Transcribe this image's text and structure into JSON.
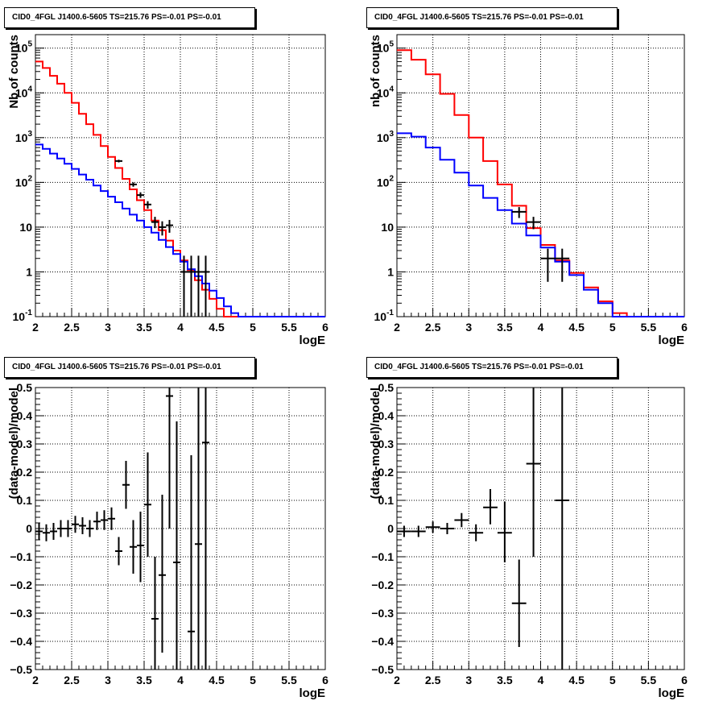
{
  "panels": [
    {
      "title": "CID0_4FGL J1400.6-5605 TS=215.76 PS=-0.01 PS=-0.01",
      "xlabel": "logE",
      "ylabel": "Nb of counts"
    },
    {
      "title": "CID0_4FGL J1400.6-5605 TS=215.76 PS=-0.01 PS=-0.01",
      "xlabel": "logE",
      "ylabel": "nb of counts"
    },
    {
      "title": "CID0_4FGL J1400.6-5605 TS=215.76 PS=-0.01 PS=-0.01",
      "xlabel": "logE",
      "ylabel": "(data-model)/model"
    },
    {
      "title": "CID0_4FGL J1400.6-5605 TS=215.76 PS=-0.01 PS=-0.01",
      "xlabel": "logE",
      "ylabel": "(data-model)/model"
    }
  ],
  "chart_data": [
    {
      "type": "histogram",
      "title": "CID0_4FGL J1400.6-5605 TS=215.76 PS=-0.01 PS=-0.01",
      "xlabel": "logE",
      "ylabel": "Nb of counts",
      "xlim": [
        2,
        6
      ],
      "ylim": [
        0.1,
        200000
      ],
      "yscale": "log",
      "grid": true,
      "xticks": [
        "2",
        "2.5",
        "3",
        "3.5",
        "4",
        "4.5",
        "5",
        "5.5",
        "6"
      ],
      "yticks": [
        {
          "value": 0.1,
          "label": "10",
          "exp": "-1"
        },
        {
          "value": 1,
          "label": "1",
          "exp": ""
        },
        {
          "value": 10,
          "label": "10",
          "exp": ""
        },
        {
          "value": 100,
          "label": "10",
          "exp": "2"
        },
        {
          "value": 1000,
          "label": "10",
          "exp": "3"
        },
        {
          "value": 10000,
          "label": "10",
          "exp": "4"
        },
        {
          "value": 100000,
          "label": "10",
          "exp": "5"
        }
      ],
      "bin_edges": [
        2.0,
        2.1,
        2.2,
        2.3,
        2.4,
        2.5,
        2.6,
        2.7,
        2.8,
        2.9,
        3.0,
        3.1,
        3.2,
        3.3,
        3.4,
        3.5,
        3.6,
        3.7,
        3.8,
        3.9,
        4.0,
        4.1,
        4.2,
        4.3,
        4.4,
        4.5,
        4.6,
        4.7,
        4.8,
        4.9,
        5.0,
        5.1,
        5.2,
        5.3,
        5.4,
        5.5,
        5.6,
        5.7,
        5.8,
        5.9,
        6.0
      ],
      "series": [
        {
          "color": "#ff0000",
          "values": [
            50000,
            36000,
            24000,
            16000,
            10000,
            6000,
            3400,
            2000,
            1150,
            650,
            370,
            210,
            120,
            70,
            40,
            24,
            14,
            8.5,
            5,
            3,
            1.8,
            1.1,
            0.65,
            0.4,
            0.25,
            0.15,
            0.1,
            0.1,
            0.1,
            0.1,
            0.1,
            0.1,
            0.1,
            0.1,
            0.1,
            0.1,
            0.1,
            0.1,
            0.1,
            0.1
          ]
        },
        {
          "color": "#0000ff",
          "values": [
            700,
            560,
            440,
            340,
            260,
            200,
            150,
            115,
            85,
            64,
            48,
            36,
            26,
            19,
            14,
            10,
            7.5,
            5.2,
            3.6,
            2.5,
            1.7,
            1.15,
            0.8,
            0.55,
            0.38,
            0.26,
            0.17,
            0.12,
            0.1,
            0.1,
            0.1,
            0.1,
            0.1,
            0.1,
            0.1,
            0.1,
            0.1,
            0.1,
            0.1,
            0.1
          ]
        }
      ],
      "points": [
        {
          "x": 3.15,
          "y": 300,
          "xerr": 0.05,
          "ylo": 280,
          "yhi": 320
        },
        {
          "x": 3.35,
          "y": 90,
          "xerr": 0.05,
          "ylo": 80,
          "yhi": 100
        },
        {
          "x": 3.45,
          "y": 52,
          "xerr": 0.05,
          "ylo": 45,
          "yhi": 60
        },
        {
          "x": 3.55,
          "y": 32,
          "xerr": 0.05,
          "ylo": 26,
          "yhi": 38
        },
        {
          "x": 3.65,
          "y": 13,
          "xerr": 0.05,
          "ylo": 9.5,
          "yhi": 17
        },
        {
          "x": 3.75,
          "y": 10,
          "xerr": 0.05,
          "ylo": 6.5,
          "yhi": 13.5
        },
        {
          "x": 3.85,
          "y": 11,
          "xerr": 0.05,
          "ylo": 7.5,
          "yhi": 14.5
        },
        {
          "x": 4.05,
          "y": 1,
          "xerr": 0.05,
          "ylo": 0.1,
          "yhi": 2.3
        },
        {
          "x": 4.15,
          "y": 1,
          "xerr": 0.05,
          "ylo": 0.1,
          "yhi": 2.3
        },
        {
          "x": 4.25,
          "y": 1,
          "xerr": 0.05,
          "ylo": 0.1,
          "yhi": 2.3
        },
        {
          "x": 4.35,
          "y": 1,
          "xerr": 0.05,
          "ylo": 0.1,
          "yhi": 2.3
        }
      ]
    },
    {
      "type": "histogram",
      "title": "CID0_4FGL J1400.6-5605 TS=215.76 PS=-0.01 PS=-0.01",
      "xlabel": "logE",
      "ylabel": "nb of counts",
      "xlim": [
        2,
        6
      ],
      "ylim": [
        0.1,
        200000
      ],
      "yscale": "log",
      "grid": true,
      "xticks": [
        "2",
        "2.5",
        "3",
        "3.5",
        "4",
        "4.5",
        "5",
        "5.5",
        "6"
      ],
      "yticks": [
        {
          "value": 0.1,
          "label": "10",
          "exp": "-1"
        },
        {
          "value": 1,
          "label": "1",
          "exp": ""
        },
        {
          "value": 10,
          "label": "10",
          "exp": ""
        },
        {
          "value": 100,
          "label": "10",
          "exp": "2"
        },
        {
          "value": 1000,
          "label": "10",
          "exp": "3"
        },
        {
          "value": 10000,
          "label": "10",
          "exp": "4"
        },
        {
          "value": 100000,
          "label": "10",
          "exp": "5"
        }
      ],
      "bin_edges": [
        2.0,
        2.2,
        2.4,
        2.6,
        2.8,
        3.0,
        3.2,
        3.4,
        3.6,
        3.8,
        4.0,
        4.2,
        4.4,
        4.6,
        4.8,
        5.0,
        5.2,
        5.4,
        5.6,
        5.8,
        6.0
      ],
      "series": [
        {
          "color": "#ff0000",
          "values": [
            90000,
            55000,
            26000,
            9500,
            3200,
            1000,
            300,
            90,
            30,
            9.5,
            4,
            1.8,
            0.95,
            0.45,
            0.22,
            0.12,
            0.1,
            0.1,
            0.1,
            0.1
          ]
        },
        {
          "color": "#0000ff",
          "values": [
            1250,
            1050,
            600,
            320,
            165,
            85,
            45,
            24,
            12,
            6.5,
            3.5,
            1.7,
            0.85,
            0.4,
            0.2,
            0.1,
            0.1,
            0.1,
            0.1,
            0.1
          ]
        }
      ],
      "points": [
        {
          "x": 3.7,
          "y": 22,
          "xerr": 0.1,
          "ylo": 16,
          "yhi": 28
        },
        {
          "x": 3.9,
          "y": 13,
          "xerr": 0.1,
          "ylo": 9,
          "yhi": 17
        },
        {
          "x": 4.1,
          "y": 2,
          "xerr": 0.1,
          "ylo": 0.6,
          "yhi": 3.3
        },
        {
          "x": 4.3,
          "y": 2,
          "xerr": 0.1,
          "ylo": 0.6,
          "yhi": 3.3
        }
      ]
    },
    {
      "type": "scatter",
      "title": "CID0_4FGL J1400.6-5605 TS=215.76 PS=-0.01 PS=-0.01",
      "xlabel": "logE",
      "ylabel": "(data-model)/model",
      "xlim": [
        2,
        6
      ],
      "ylim": [
        -0.5,
        0.5
      ],
      "yscale": "linear",
      "grid": true,
      "xticks": [
        "2",
        "2.5",
        "3",
        "3.5",
        "4",
        "4.5",
        "5",
        "5.5",
        "6"
      ],
      "yticks": [
        {
          "value": -0.5,
          "label": "−0.5",
          "exp": ""
        },
        {
          "value": -0.4,
          "label": "−0.4",
          "exp": ""
        },
        {
          "value": -0.3,
          "label": "−0.3",
          "exp": ""
        },
        {
          "value": -0.2,
          "label": "−0.2",
          "exp": ""
        },
        {
          "value": -0.1,
          "label": "−0.1",
          "exp": ""
        },
        {
          "value": 0,
          "label": "0",
          "exp": ""
        },
        {
          "value": 0.1,
          "label": "0.1",
          "exp": ""
        },
        {
          "value": 0.2,
          "label": "0.2",
          "exp": ""
        },
        {
          "value": 0.3,
          "label": "0.3",
          "exp": ""
        },
        {
          "value": 0.4,
          "label": "0.4",
          "exp": ""
        },
        {
          "value": 0.5,
          "label": "0.5",
          "exp": ""
        }
      ],
      "points": [
        {
          "x": 2.05,
          "y": -0.01,
          "xerr": 0.05,
          "ylo": -0.04,
          "yhi": 0.02
        },
        {
          "x": 2.15,
          "y": -0.015,
          "xerr": 0.05,
          "ylo": -0.045,
          "yhi": 0.015
        },
        {
          "x": 2.25,
          "y": -0.01,
          "xerr": 0.05,
          "ylo": -0.04,
          "yhi": 0.02
        },
        {
          "x": 2.35,
          "y": 0.0,
          "xerr": 0.05,
          "ylo": -0.03,
          "yhi": 0.03
        },
        {
          "x": 2.45,
          "y": 0.0,
          "xerr": 0.05,
          "ylo": -0.03,
          "yhi": 0.03
        },
        {
          "x": 2.55,
          "y": 0.015,
          "xerr": 0.05,
          "ylo": -0.015,
          "yhi": 0.045
        },
        {
          "x": 2.65,
          "y": 0.01,
          "xerr": 0.05,
          "ylo": -0.02,
          "yhi": 0.04
        },
        {
          "x": 2.75,
          "y": 0.0,
          "xerr": 0.05,
          "ylo": -0.03,
          "yhi": 0.03
        },
        {
          "x": 2.85,
          "y": 0.025,
          "xerr": 0.05,
          "ylo": -0.005,
          "yhi": 0.06
        },
        {
          "x": 2.95,
          "y": 0.03,
          "xerr": 0.05,
          "ylo": -0.005,
          "yhi": 0.065
        },
        {
          "x": 3.05,
          "y": 0.035,
          "xerr": 0.05,
          "ylo": -0.005,
          "yhi": 0.075
        },
        {
          "x": 3.15,
          "y": -0.08,
          "xerr": 0.05,
          "ylo": -0.13,
          "yhi": -0.03
        },
        {
          "x": 3.25,
          "y": 0.155,
          "xerr": 0.05,
          "ylo": 0.07,
          "yhi": 0.24
        },
        {
          "x": 3.35,
          "y": -0.065,
          "xerr": 0.05,
          "ylo": -0.16,
          "yhi": 0.03
        },
        {
          "x": 3.45,
          "y": -0.06,
          "xerr": 0.05,
          "ylo": -0.19,
          "yhi": 0.06
        },
        {
          "x": 3.55,
          "y": 0.085,
          "xerr": 0.05,
          "ylo": -0.1,
          "yhi": 0.27
        },
        {
          "x": 3.65,
          "y": -0.32,
          "xerr": 0.05,
          "ylo": -0.5,
          "yhi": -0.1
        },
        {
          "x": 3.75,
          "y": -0.165,
          "xerr": 0.05,
          "ylo": -0.44,
          "yhi": 0.12
        },
        {
          "x": 3.85,
          "y": 0.47,
          "xerr": 0.05,
          "ylo": 0.0,
          "yhi": 0.5
        },
        {
          "x": 3.95,
          "y": -0.12,
          "xerr": 0.05,
          "ylo": -0.5,
          "yhi": 0.38
        },
        {
          "x": 4.15,
          "y": -0.365,
          "xerr": 0.05,
          "ylo": -0.5,
          "yhi": 0.26
        },
        {
          "x": 4.25,
          "y": -0.055,
          "xerr": 0.05,
          "ylo": -0.5,
          "yhi": 0.5
        },
        {
          "x": 4.35,
          "y": 0.305,
          "xerr": 0.05,
          "ylo": -0.5,
          "yhi": 0.5
        }
      ]
    },
    {
      "type": "scatter",
      "title": "CID0_4FGL J1400.6-5605 TS=215.76 PS=-0.01 PS=-0.01",
      "xlabel": "logE",
      "ylabel": "(data-model)/model",
      "xlim": [
        2,
        6
      ],
      "ylim": [
        -0.5,
        0.5
      ],
      "yscale": "linear",
      "grid": true,
      "xticks": [
        "2",
        "2.5",
        "3",
        "3.5",
        "4",
        "4.5",
        "5",
        "5.5",
        "6"
      ],
      "yticks": [
        {
          "value": -0.5,
          "label": "−0.5",
          "exp": ""
        },
        {
          "value": -0.4,
          "label": "−0.4",
          "exp": ""
        },
        {
          "value": -0.3,
          "label": "−0.3",
          "exp": ""
        },
        {
          "value": -0.2,
          "label": "−0.2",
          "exp": ""
        },
        {
          "value": -0.1,
          "label": "−0.1",
          "exp": ""
        },
        {
          "value": 0,
          "label": "0",
          "exp": ""
        },
        {
          "value": 0.1,
          "label": "0.1",
          "exp": ""
        },
        {
          "value": 0.2,
          "label": "0.2",
          "exp": ""
        },
        {
          "value": 0.3,
          "label": "0.3",
          "exp": ""
        },
        {
          "value": 0.4,
          "label": "0.4",
          "exp": ""
        },
        {
          "value": 0.5,
          "label": "0.5",
          "exp": ""
        }
      ],
      "points": [
        {
          "x": 2.1,
          "y": -0.01,
          "xerr": 0.1,
          "ylo": -0.03,
          "yhi": 0.01
        },
        {
          "x": 2.3,
          "y": -0.01,
          "xerr": 0.1,
          "ylo": -0.03,
          "yhi": 0.01
        },
        {
          "x": 2.5,
          "y": 0.005,
          "xerr": 0.1,
          "ylo": -0.015,
          "yhi": 0.025
        },
        {
          "x": 2.7,
          "y": 0.0,
          "xerr": 0.1,
          "ylo": -0.02,
          "yhi": 0.02
        },
        {
          "x": 2.9,
          "y": 0.03,
          "xerr": 0.1,
          "ylo": 0.005,
          "yhi": 0.055
        },
        {
          "x": 3.1,
          "y": -0.015,
          "xerr": 0.1,
          "ylo": -0.045,
          "yhi": 0.015
        },
        {
          "x": 3.3,
          "y": 0.075,
          "xerr": 0.1,
          "ylo": 0.015,
          "yhi": 0.14
        },
        {
          "x": 3.5,
          "y": -0.015,
          "xerr": 0.1,
          "ylo": -0.12,
          "yhi": 0.095
        },
        {
          "x": 3.7,
          "y": -0.265,
          "xerr": 0.1,
          "ylo": -0.42,
          "yhi": -0.11
        },
        {
          "x": 3.9,
          "y": 0.23,
          "xerr": 0.1,
          "ylo": -0.1,
          "yhi": 0.5
        },
        {
          "x": 4.3,
          "y": 0.1,
          "xerr": 0.1,
          "ylo": -0.5,
          "yhi": 0.5
        }
      ]
    }
  ]
}
